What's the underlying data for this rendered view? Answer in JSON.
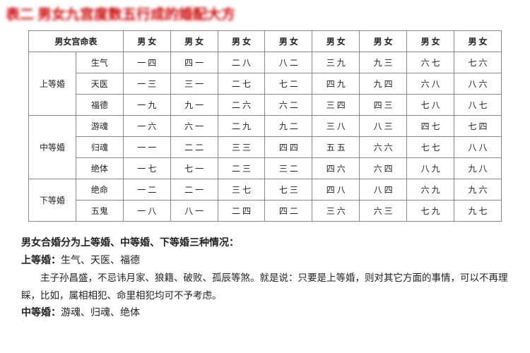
{
  "title_blur": "表二 男女九宫度数五行成的婚配大方",
  "table": {
    "col0_header": "男女宫命表",
    "pair_headers": [
      "男 女",
      "男 女",
      "男 女",
      "男 女",
      "男 女",
      "男 女",
      "男 女",
      "男 女"
    ],
    "groups": [
      {
        "name": "上等婚",
        "rows": [
          {
            "label": "生气",
            "cells": [
              "一 四",
              "四 一",
              "二 八",
              "八 二",
              "三 九",
              "九 三",
              "六 七",
              "七 六"
            ]
          },
          {
            "label": "天医",
            "cells": [
              "一 三",
              "三 一",
              "二 七",
              "七 二",
              "四 九",
              "九 四",
              "六 八",
              "八 六"
            ]
          },
          {
            "label": "福德",
            "cells": [
              "一 九",
              "九 一",
              "二 六",
              "六 二",
              "三 四",
              "四 三",
              "七 八",
              "八 七"
            ]
          }
        ]
      },
      {
        "name": "中等婚",
        "rows": [
          {
            "label": "游魂",
            "cells": [
              "一 六",
              "六 一",
              "二 九",
              "九 二",
              "三 八",
              "八 三",
              "四 七",
              "七 四"
            ]
          },
          {
            "label": "归魂",
            "cells": [
              "一 一",
              "二 二",
              "三 三",
              "四 四",
              "五 五",
              "六 六",
              "七 七",
              "八 八"
            ]
          },
          {
            "label": "绝体",
            "cells": [
              "一 七",
              "七 一",
              "二 三",
              "三 二",
              "四 六",
              "六 四",
              "八 九",
              "九 八"
            ]
          }
        ]
      },
      {
        "name": "下等婚",
        "rows": [
          {
            "label": "绝命",
            "cells": [
              "一 二",
              "二 一",
              "三 七",
              "七 三",
              "四 八",
              "八 四",
              "六 九",
              "九 六"
            ]
          },
          {
            "label": "五鬼",
            "cells": [
              "一 八",
              "八 一",
              "二 四",
              "四 二",
              "三 六",
              "六 三",
              "七 九",
              "九 七"
            ]
          }
        ]
      }
    ]
  },
  "desc": {
    "heading": "男女合婚分为上等婚、中等婚、下等婚三种情况：",
    "upper_label": "上等婚：",
    "upper_names": "生气、天医、福德",
    "body1": "主子孙昌盛，不忌讳月家、狼籍、破败、孤辰等煞。就是说：只要是上等婚，则对其它方面的事情，可以不再理睬，比如，属相相犯、命里相犯均可不予考虑。",
    "middle_label": "中等婚：",
    "middle_names": "游魂、归魂、绝体"
  },
  "colors": {
    "title": "#cc0000",
    "border": "#888888",
    "text": "#222222",
    "bg": "#ffffff"
  }
}
